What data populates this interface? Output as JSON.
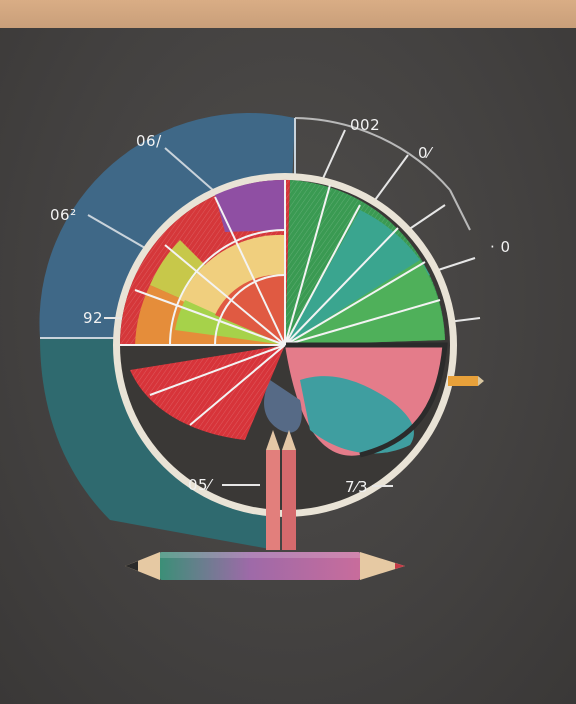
{
  "labels": {
    "top_left": "06/",
    "upper_left": "06²",
    "mid_left": "92",
    "top_right": "002",
    "upper_right": "0⁄",
    "right": "· 0",
    "bottom_left": "05⁄",
    "bottom_right": "7⁄3"
  },
  "colors": {
    "background": "#444240",
    "top_strip": "#d2a57f",
    "blue_band": "#3f6887",
    "teal_band": "#2f6a6f",
    "green": "#3a9a52",
    "red": "#d5373a",
    "orange": "#e58d3a",
    "yellow": "#e8d25a",
    "purple": "#8f4fa3"
  }
}
